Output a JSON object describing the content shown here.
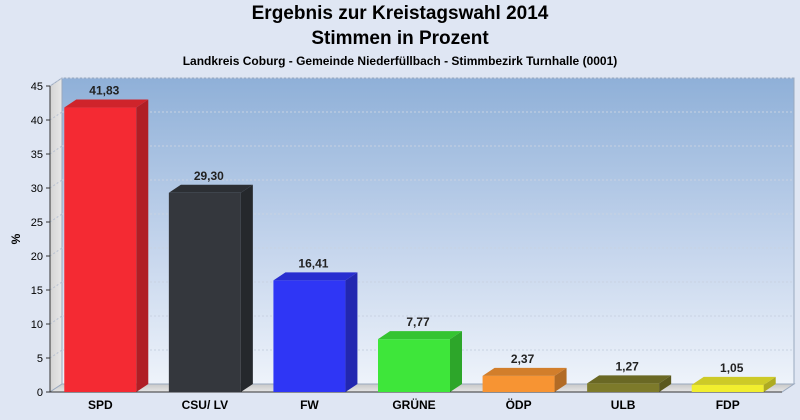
{
  "chart_data": {
    "type": "bar",
    "title": "Ergebnis zur Kreistagswahl 2014",
    "title_line2": "Stimmen in Prozent",
    "subtitle": "Landkreis Coburg - Gemeinde Niederfüllbach - Stimmbezirk Turnhalle (0001)",
    "ylabel": "%",
    "ylim": [
      0,
      45
    ],
    "yticks": [
      "0",
      "5",
      "10",
      "15",
      "20",
      "25",
      "30",
      "35",
      "40",
      "45"
    ],
    "grid": true,
    "categories": [
      "SPD",
      "CSU/ LV",
      "FW",
      "GRÜNE",
      "ÖDP",
      "ULB",
      "FDP"
    ],
    "values": [
      41.83,
      29.3,
      16.41,
      7.77,
      2.37,
      1.27,
      1.05
    ],
    "value_labels": [
      "41,83",
      "29,30",
      "16,41",
      "7,77",
      "2,37",
      "1,27",
      "1,05"
    ],
    "colors": [
      "#f42a33",
      "#34373d",
      "#2f36f5",
      "#3ee63a",
      "#f79433",
      "#7d7a2a",
      "#f1ee2e"
    ]
  }
}
